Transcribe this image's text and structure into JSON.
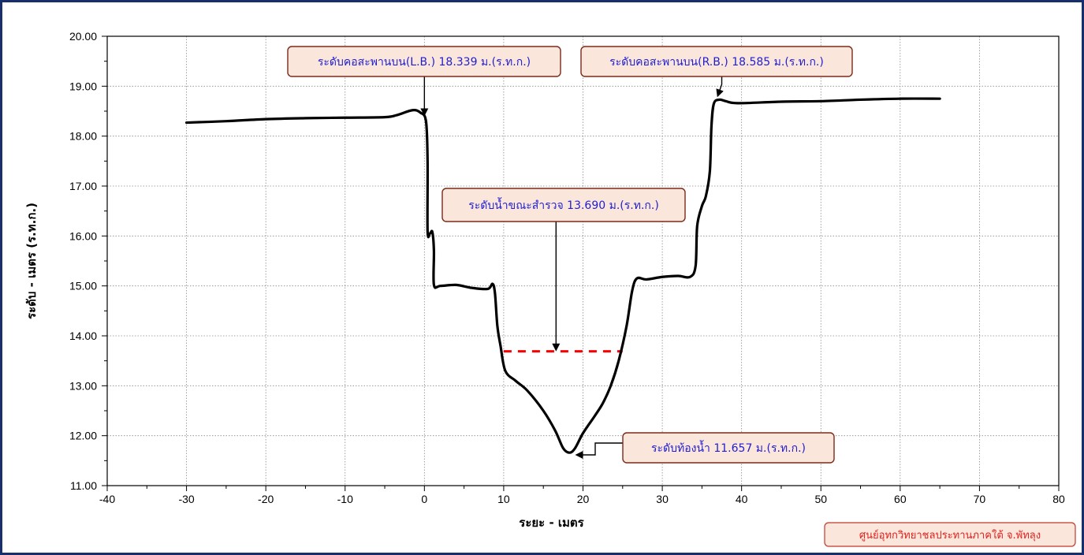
{
  "chart_data": {
    "type": "line",
    "xlabel": "ระยะ - เมตร",
    "ylabel": "ระดับ - เมตร (ร.ท.ก.)",
    "xlim": [
      -40,
      80
    ],
    "ylim": [
      11,
      20
    ],
    "x_ticks": [
      "-40",
      "-30",
      "-20",
      "-10",
      "0",
      "10",
      "20",
      "30",
      "40",
      "50",
      "60",
      "70",
      "80"
    ],
    "y_ticks": [
      "11.00",
      "12.00",
      "13.00",
      "14.00",
      "15.00",
      "16.00",
      "17.00",
      "18.00",
      "19.00",
      "20.00"
    ],
    "grid": true,
    "series": [
      {
        "color": "#000000",
        "points": [
          [
            -30,
            18.27
          ],
          [
            -25,
            18.3
          ],
          [
            -20,
            18.34
          ],
          [
            -15,
            18.36
          ],
          [
            -10,
            18.37
          ],
          [
            -5,
            18.38
          ],
          [
            -3.5,
            18.42
          ],
          [
            -1.5,
            18.52
          ],
          [
            -0.5,
            18.47
          ],
          [
            0.2,
            18.3
          ],
          [
            0.4,
            17.5
          ],
          [
            0.4,
            16.1
          ],
          [
            0.7,
            16.05
          ],
          [
            1.0,
            16.08
          ],
          [
            1.2,
            15.7
          ],
          [
            1.2,
            15.02
          ],
          [
            2,
            15.0
          ],
          [
            4,
            15.02
          ],
          [
            6,
            14.96
          ],
          [
            8,
            14.94
          ],
          [
            8.6,
            15.04
          ],
          [
            8.9,
            14.85
          ],
          [
            9.2,
            14.2
          ],
          [
            9.6,
            13.8
          ],
          [
            10.2,
            13.3
          ],
          [
            11.5,
            13.1
          ],
          [
            13,
            12.9
          ],
          [
            15,
            12.5
          ],
          [
            16.5,
            12.1
          ],
          [
            17.5,
            11.75
          ],
          [
            18.3,
            11.66
          ],
          [
            19,
            11.75
          ],
          [
            20,
            12.05
          ],
          [
            21.5,
            12.4
          ],
          [
            22.5,
            12.65
          ],
          [
            23.5,
            13.0
          ],
          [
            24.5,
            13.5
          ],
          [
            25.5,
            14.2
          ],
          [
            26.2,
            14.9
          ],
          [
            26.8,
            15.15
          ],
          [
            28,
            15.13
          ],
          [
            30,
            15.18
          ],
          [
            32,
            15.2
          ],
          [
            33.5,
            15.18
          ],
          [
            34.2,
            15.4
          ],
          [
            34.4,
            16.2
          ],
          [
            35,
            16.6
          ],
          [
            35.5,
            16.8
          ],
          [
            36,
            17.3
          ],
          [
            36.2,
            18.2
          ],
          [
            36.5,
            18.65
          ],
          [
            37.2,
            18.73
          ],
          [
            38,
            18.7
          ],
          [
            39.5,
            18.66
          ],
          [
            45,
            18.69
          ],
          [
            50,
            18.7
          ],
          [
            55,
            18.73
          ],
          [
            60,
            18.75
          ],
          [
            65,
            18.75
          ]
        ]
      }
    ],
    "water_level": {
      "value": 13.69,
      "x_range": [
        10,
        25
      ],
      "color": "#ff0000"
    },
    "annotations": [
      {
        "text": "ระดับคอสะพานบน(L.B.) 18.339 ม.(ร.ท.ก.)",
        "target": [
          0,
          18.339
        ]
      },
      {
        "text": "ระดับคอสะพานบน(R.B.) 18.585 ม.(ร.ท.ก.)",
        "target": [
          37,
          18.585
        ]
      },
      {
        "text": "ระดับน้ำขณะสำรวจ 13.690 ม.(ร.ท.ก.)",
        "target": [
          16.5,
          13.69
        ]
      },
      {
        "text": "ระดับท้องน้ำ 11.657 ม.(ร.ท.ก.)",
        "target": [
          18.3,
          11.657
        ]
      }
    ]
  },
  "credit": "ศูนย์อุทกวิทยาชลประทานภาคใต้ จ.พัทลุง",
  "colors": {
    "frame": "#17306b",
    "curve": "#000000",
    "water": "#ff0000",
    "annotation_text": "#1f1fd0",
    "annotation_fill": "#fbe6dc",
    "annotation_border": "#7a2a1a",
    "credit_text": "#e0201c"
  }
}
